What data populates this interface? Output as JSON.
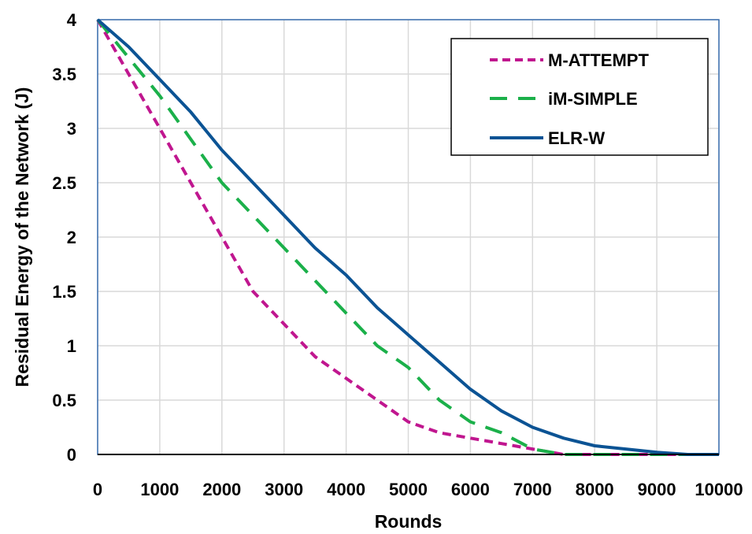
{
  "chart_data": {
    "type": "line",
    "title": "",
    "xlabel": "Rounds",
    "ylabel": "Residual Energy of the Network (J)",
    "xlim": [
      0,
      10000
    ],
    "ylim": [
      0,
      4
    ],
    "xticks": [
      "0",
      "1000",
      "2000",
      "3000",
      "4000",
      "5000",
      "6000",
      "7000",
      "8000",
      "9000",
      "10000"
    ],
    "yticks": [
      "0",
      "0.5",
      "1",
      "1.5",
      "2",
      "2.5",
      "3",
      "3.5",
      "4"
    ],
    "grid": true,
    "legend_position": "top-right",
    "series": [
      {
        "name": "M-ATTEMPT",
        "color": "#c0168f",
        "style": "short-dash",
        "x": [
          0,
          500,
          1000,
          1500,
          2000,
          2500,
          3000,
          3500,
          4000,
          4500,
          5000,
          5500,
          6000,
          6500,
          7000,
          7500,
          8000,
          8500,
          9000,
          9500,
          10000
        ],
        "y": [
          4.0,
          3.5,
          3.0,
          2.5,
          2.0,
          1.5,
          1.2,
          0.9,
          0.7,
          0.5,
          0.3,
          0.2,
          0.15,
          0.1,
          0.05,
          0.0,
          0.0,
          0.0,
          0.0,
          0.0,
          0.0
        ]
      },
      {
        "name": "iM-SIMPLE",
        "color": "#1bb04a",
        "style": "long-dash",
        "x": [
          0,
          500,
          1000,
          1500,
          2000,
          2500,
          3000,
          3500,
          4000,
          4500,
          5000,
          5500,
          6000,
          6500,
          7000,
          7500,
          8000,
          8500,
          9000,
          9500,
          10000
        ],
        "y": [
          4.0,
          3.65,
          3.3,
          2.9,
          2.5,
          2.2,
          1.9,
          1.6,
          1.3,
          1.0,
          0.8,
          0.5,
          0.3,
          0.2,
          0.05,
          0.0,
          0.0,
          0.0,
          0.0,
          0.0,
          0.0
        ]
      },
      {
        "name": "ELR-W",
        "color": "#0b5394",
        "style": "solid",
        "x": [
          0,
          500,
          1000,
          1500,
          2000,
          2500,
          3000,
          3500,
          4000,
          4500,
          5000,
          5500,
          6000,
          6500,
          7000,
          7500,
          8000,
          8500,
          9000,
          9500,
          10000
        ],
        "y": [
          4.0,
          3.75,
          3.45,
          3.15,
          2.8,
          2.5,
          2.2,
          1.9,
          1.65,
          1.35,
          1.1,
          0.85,
          0.6,
          0.4,
          0.25,
          0.15,
          0.08,
          0.05,
          0.02,
          0.0,
          0.0
        ]
      }
    ]
  }
}
